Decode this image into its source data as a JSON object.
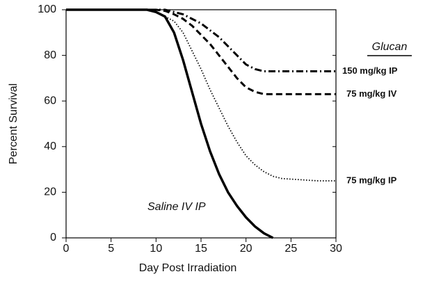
{
  "chart_data": {
    "type": "line",
    "xlabel": "Day Post Irradiation",
    "ylabel": "Percent Survival",
    "legend_title": "Glucan",
    "x": [
      0,
      5,
      9,
      10,
      11,
      12,
      13,
      14,
      15,
      16,
      17,
      18,
      19,
      20,
      21,
      22,
      23,
      24,
      26,
      28,
      30
    ],
    "series": [
      {
        "name": "150 mg/kg IP",
        "color": "#000000",
        "style": "dashdot",
        "values": [
          100,
          100,
          100,
          100,
          100,
          99,
          98,
          96,
          94,
          91,
          88,
          84,
          80,
          76,
          74,
          73,
          73,
          73,
          73,
          73,
          73
        ]
      },
      {
        "name": "75 mg/kg IV",
        "color": "#000000",
        "style": "dashed",
        "values": [
          100,
          100,
          100,
          100,
          99.5,
          98,
          96,
          93,
          89,
          85,
          80,
          75,
          70,
          66,
          64,
          63,
          63,
          63,
          63,
          63,
          63
        ]
      },
      {
        "name": "75 mg/kg IP",
        "color": "#000000",
        "style": "dotted",
        "values": [
          100,
          100,
          100,
          99,
          97,
          95,
          90,
          82,
          74,
          65,
          57,
          49,
          42,
          36,
          32,
          29,
          27,
          26,
          25.5,
          25,
          25
        ]
      },
      {
        "name": "Saline IV IP",
        "color": "#000000",
        "style": "solid",
        "values": [
          100,
          100,
          100,
          99,
          97,
          90,
          78,
          64,
          50,
          38,
          28,
          20,
          14,
          9,
          5,
          2,
          0,
          null,
          null,
          null,
          null
        ]
      }
    ],
    "xlim": [
      0,
      30
    ],
    "xticks": [
      0,
      5,
      10,
      15,
      20,
      25,
      30
    ],
    "ylim": [
      0,
      100
    ],
    "yticks": [
      0,
      20,
      40,
      60,
      80,
      100
    ]
  }
}
